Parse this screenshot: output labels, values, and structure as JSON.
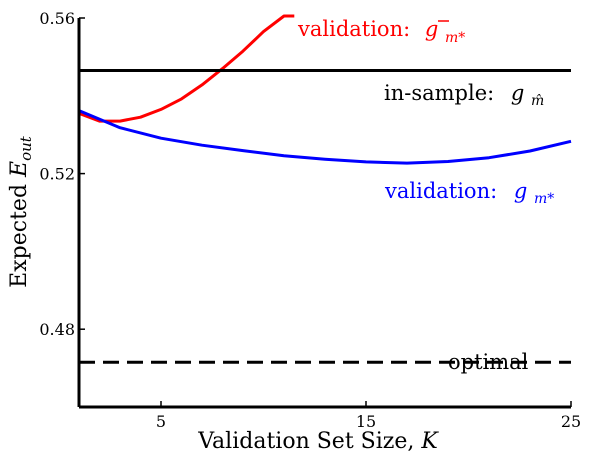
{
  "chart_data": {
    "type": "line",
    "xlabel": "Validation Set Size, K",
    "ylabel": "Expected E_out",
    "xlim": [
      1,
      25
    ],
    "ylim": [
      0.46,
      0.56
    ],
    "xticks": [
      5,
      15,
      25
    ],
    "xtick_labels": [
      "5",
      "15",
      "25"
    ],
    "yticks": [
      0.48,
      0.52,
      0.56
    ],
    "ytick_labels": [
      "0.48",
      "0.52",
      "0.56"
    ],
    "grid": false,
    "legend": "none (inline curve annotations)",
    "series": [
      {
        "name": "validation: g_m*-bar",
        "color": "#ff0000",
        "style": "solid",
        "x": [
          1,
          2,
          3,
          4,
          5,
          6,
          7,
          8,
          9,
          10,
          11,
          11.5
        ],
        "y": [
          0.5355,
          0.5335,
          0.5335,
          0.5345,
          0.5365,
          0.5392,
          0.5428,
          0.547,
          0.5515,
          0.5565,
          0.562,
          0.5652
        ]
      },
      {
        "name": "validation: g_m*",
        "color": "#0000ff",
        "style": "solid",
        "x": [
          1,
          3,
          5,
          7,
          9,
          11,
          13,
          15,
          17,
          19,
          21,
          23,
          25
        ],
        "y": [
          0.5362,
          0.5318,
          0.5291,
          0.5273,
          0.5259,
          0.5246,
          0.5237,
          0.523,
          0.5227,
          0.5231,
          0.5241,
          0.5258,
          0.5283
        ]
      },
      {
        "name": "in-sample: g_m-hat",
        "color": "#000000",
        "style": "solid",
        "x": [
          1,
          25
        ],
        "y": [
          0.5465,
          0.5465
        ]
      },
      {
        "name": "optimal",
        "color": "#000000",
        "style": "dashed",
        "x": [
          1,
          25
        ],
        "y": [
          0.4715,
          0.4715
        ]
      }
    ],
    "annotations": {
      "red_prefix": "validation:",
      "red_math": "g",
      "red_sub": "m*",
      "black_prefix": "in-sample:",
      "black_math": "g",
      "black_sub": "m̂",
      "blue_prefix": "validation:",
      "blue_math": "g",
      "blue_sub": "m*",
      "optimal": "optimal"
    },
    "ylabel_main": "Expected ",
    "ylabel_math": "E",
    "ylabel_sub": "out",
    "xlabel_main": "Validation Set Size, ",
    "xlabel_math": "K"
  }
}
